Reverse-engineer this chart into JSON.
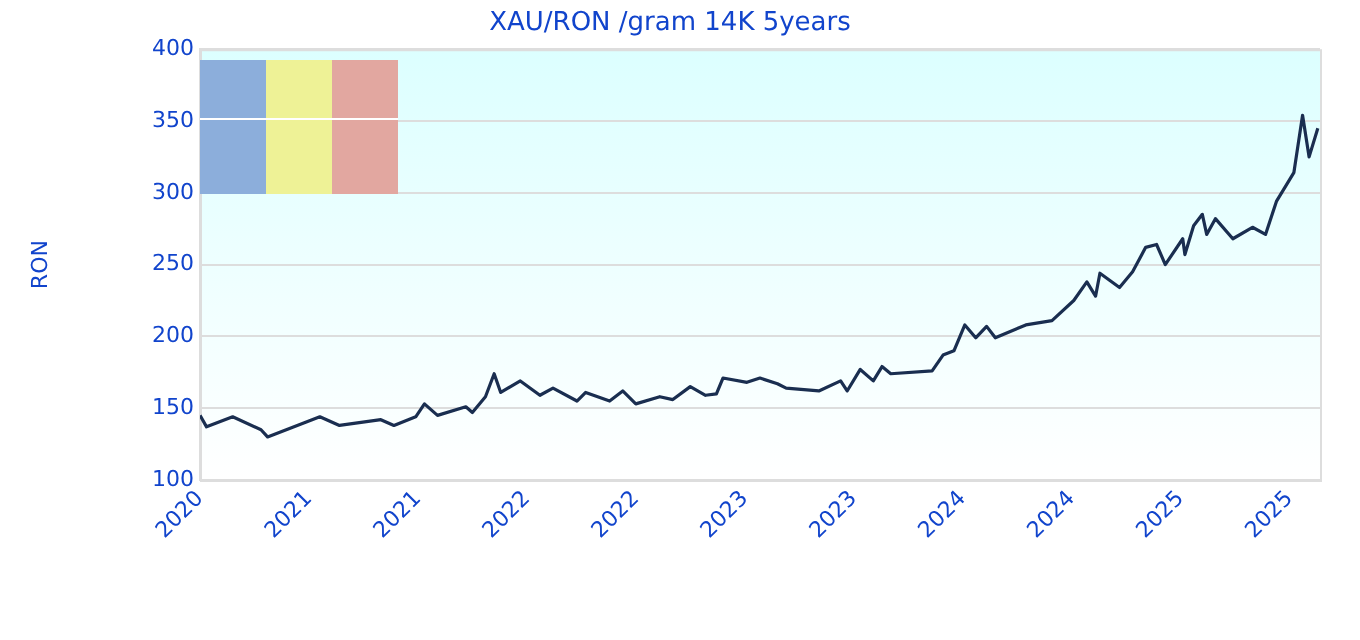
{
  "chart_data": {
    "type": "line",
    "title": "XAU/RON /gram 14K 5years",
    "ylabel": "RON",
    "x": [
      2020.0,
      2020.03,
      2020.15,
      2020.28,
      2020.31,
      2020.55,
      2020.64,
      2020.83,
      2020.89,
      2020.99,
      2021.03,
      2021.09,
      2021.22,
      2021.25,
      2021.31,
      2021.35,
      2021.38,
      2021.47,
      2021.56,
      2021.62,
      2021.73,
      2021.77,
      2021.88,
      2021.94,
      2022.0,
      2022.11,
      2022.17,
      2022.25,
      2022.32,
      2022.37,
      2022.4,
      2022.51,
      2022.57,
      2022.65,
      2022.69,
      2022.84,
      2022.94,
      2022.97,
      2023.03,
      2023.09,
      2023.13,
      2023.17,
      2023.36,
      2023.41,
      2023.46,
      2023.51,
      2023.56,
      2023.61,
      2023.65,
      2023.79,
      2023.91,
      2024.01,
      2024.07,
      2024.11,
      2024.13,
      2024.22,
      2024.28,
      2024.34,
      2024.39,
      2024.43,
      2024.51,
      2024.52,
      2024.56,
      2024.6,
      2024.62,
      2024.66,
      2024.74,
      2024.83,
      2024.89,
      2024.94,
      2025.02,
      2025.06,
      2025.09,
      2025.13
    ],
    "series": [
      {
        "color": "#1a2e50",
        "values": [
          145,
          137,
          144,
          135,
          130,
          144,
          138,
          142,
          138,
          144,
          153,
          145,
          151,
          147,
          158,
          174,
          161,
          169,
          159,
          164,
          155,
          161,
          155,
          162,
          153,
          158,
          156,
          165,
          159,
          160,
          171,
          168,
          171,
          167,
          164,
          162,
          169,
          162,
          177,
          169,
          179,
          174,
          176,
          187,
          190,
          208,
          199,
          207,
          199,
          208,
          211,
          225,
          238,
          228,
          244,
          234,
          245,
          262,
          264,
          250,
          268,
          257,
          277,
          285,
          271,
          282,
          268,
          276,
          271,
          294,
          314,
          354,
          325,
          345
        ]
      }
    ],
    "xlim": [
      2020,
      2025.14
    ],
    "xticks": [
      2020,
      {
        "value": 2020.5,
        "label": "2021"
      },
      2021,
      {
        "value": 2021.5,
        "label": "2022"
      },
      2022,
      {
        "value": 2022.5,
        "label": "2023"
      },
      2023,
      {
        "value": 2023.5,
        "label": "2024"
      },
      2024,
      {
        "value": 2024.5,
        "label": "2025"
      },
      2025
    ],
    "ylim": [
      100,
      400
    ],
    "yticks": [
      100,
      150,
      200,
      250,
      300,
      350,
      400
    ],
    "grid": "y",
    "legend": false,
    "marker": "none",
    "line_style": "solid"
  }
}
